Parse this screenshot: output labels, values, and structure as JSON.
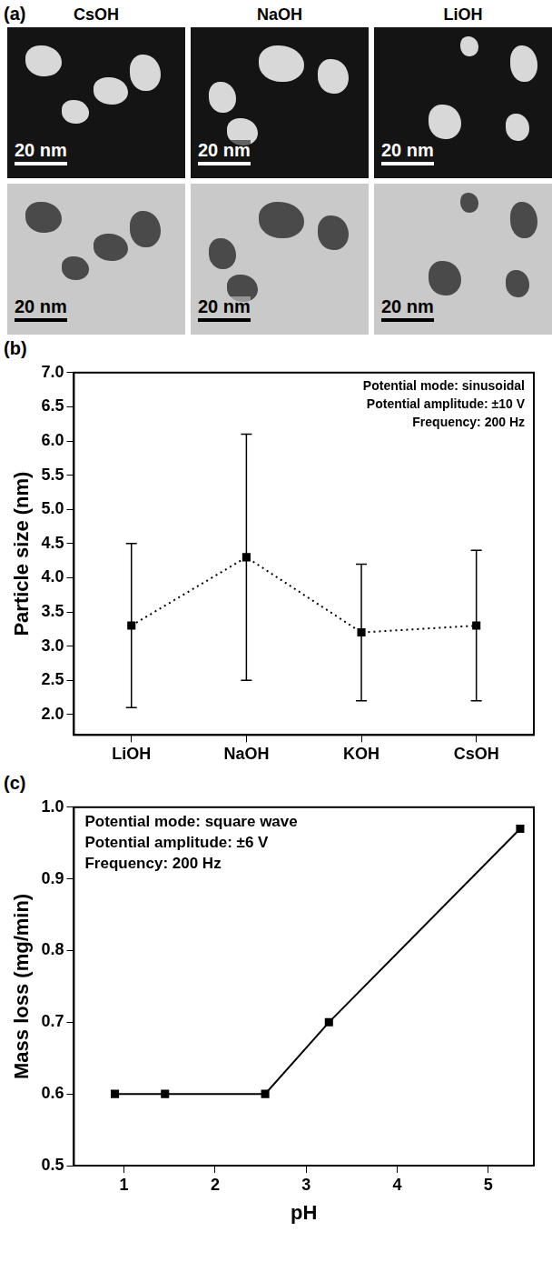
{
  "panel_a": {
    "panel_label": "(a)",
    "columns": [
      "CsOH",
      "NaOH",
      "LiOH"
    ],
    "scale_bar": "20 nm"
  },
  "chart_data": [
    {
      "type": "line",
      "panel_label": "(b)",
      "annotations": [
        "Potential mode: sinusoidal",
        "Potential amplitude: ±10 V",
        "Frequency: 200 Hz"
      ],
      "y_label": "Particle size (nm)",
      "categories": [
        "LiOH",
        "NaOH",
        "KOH",
        "CsOH"
      ],
      "values": [
        3.3,
        4.3,
        3.2,
        3.3
      ],
      "errors": [
        1.2,
        1.8,
        1.0,
        1.1
      ],
      "color": "#000000",
      "marker": "square",
      "line_style": "dotted",
      "ylim": [
        1.7,
        7.0
      ],
      "yticks": [
        {
          "value": 2,
          "label": "2.0"
        },
        2.5,
        {
          "value": 3,
          "label": "3.0"
        },
        3.5,
        {
          "value": 4,
          "label": "4.0"
        },
        4.5,
        {
          "value": 5,
          "label": "5.0"
        },
        5.5,
        {
          "value": 6,
          "label": "6.0"
        },
        6.5,
        {
          "value": 7,
          "label": "7.0"
        }
      ],
      "grid": false
    },
    {
      "type": "line",
      "panel_label": "(c)",
      "annotations": [
        "Potential mode: square wave",
        "Potential amplitude: ±6 V",
        "Frequency: 200 Hz"
      ],
      "x_label": "pH",
      "y_label": "Mass loss (mg/min)",
      "x": [
        0.9,
        1.45,
        2.55,
        3.25,
        5.35
      ],
      "values": [
        0.6,
        0.6,
        0.6,
        0.7,
        0.97
      ],
      "color": "#000000",
      "marker": "square",
      "line_style": "solid",
      "xlim": [
        0.45,
        5.5
      ],
      "xticks": [
        1,
        2,
        3,
        4,
        5
      ],
      "ylim": [
        0.5,
        1.0
      ],
      "yticks": [
        0.5,
        0.6,
        0.7,
        0.8,
        0.9,
        {
          "value": 1,
          "label": "1.0"
        }
      ],
      "grid": false
    }
  ]
}
